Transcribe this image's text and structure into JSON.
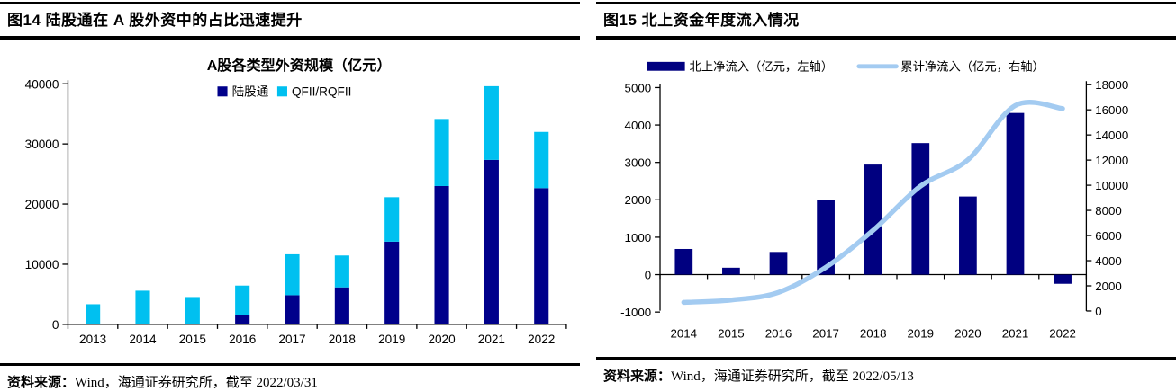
{
  "panels": [
    {
      "title": "图14 陆股通在 A 股外资中的占比迅速提升",
      "source_label": "资料来源：",
      "source_text": "Wind，海通证券研究所，截至 2022/03/31"
    },
    {
      "title": "图15 北上资金年度流入情况",
      "source_label": "资料来源：",
      "source_text": "Wind，海通证券研究所，截至 2022/05/13"
    }
  ],
  "colors": {
    "navy": "#00008B",
    "navy_dark": "#000080",
    "cyan": "#00C0F0",
    "light_blue": "#A3CBF1",
    "axis": "#000000",
    "text": "#000000"
  },
  "chart_data": [
    {
      "type": "bar",
      "stacked": true,
      "title": "A股各类型外资规模（亿元）",
      "categories": [
        "2013",
        "2014",
        "2015",
        "2016",
        "2017",
        "2018",
        "2019",
        "2020",
        "2021",
        "2022"
      ],
      "series": [
        {
          "name": "陆股通",
          "color": "#00008B",
          "values": [
            0,
            0,
            0,
            1500,
            4850,
            6150,
            13750,
            23000,
            27350,
            22650
          ]
        },
        {
          "name": "QFII/RQFII",
          "color": "#00C0F0",
          "values": [
            3350,
            5600,
            4550,
            4950,
            6800,
            5300,
            7400,
            11150,
            12250,
            9350
          ]
        }
      ],
      "ylim": [
        0,
        40000
      ],
      "yticks": [
        0,
        10000,
        20000,
        30000,
        40000
      ],
      "legend_position": "top",
      "grid": false
    },
    {
      "type": "bar+line",
      "categories": [
        "2014",
        "2015",
        "2016",
        "2017",
        "2018",
        "2019",
        "2020",
        "2021",
        "2022"
      ],
      "series": [
        {
          "name": "北上净流入（亿元，左轴）",
          "type": "bar",
          "axis": "left",
          "color": "#000080",
          "values": [
            686,
            185,
            606,
            1997,
            2942,
            3517,
            2089,
            4322,
            -245
          ]
        },
        {
          "name": "累计净流入（亿元，右轴）",
          "type": "line",
          "axis": "right",
          "color": "#A3CBF1",
          "values": [
            686,
            871,
            1477,
            3474,
            6417,
            9934,
            12023,
            16345,
            16100
          ]
        }
      ],
      "left_ylim": [
        -1000,
        5000
      ],
      "left_yticks": [
        -1000,
        0,
        1000,
        2000,
        3000,
        4000,
        5000
      ],
      "right_ylim": [
        0,
        18000
      ],
      "right_yticks": [
        0,
        2000,
        4000,
        6000,
        8000,
        10000,
        12000,
        14000,
        16000,
        18000
      ],
      "legend_position": "top",
      "grid": false
    }
  ]
}
